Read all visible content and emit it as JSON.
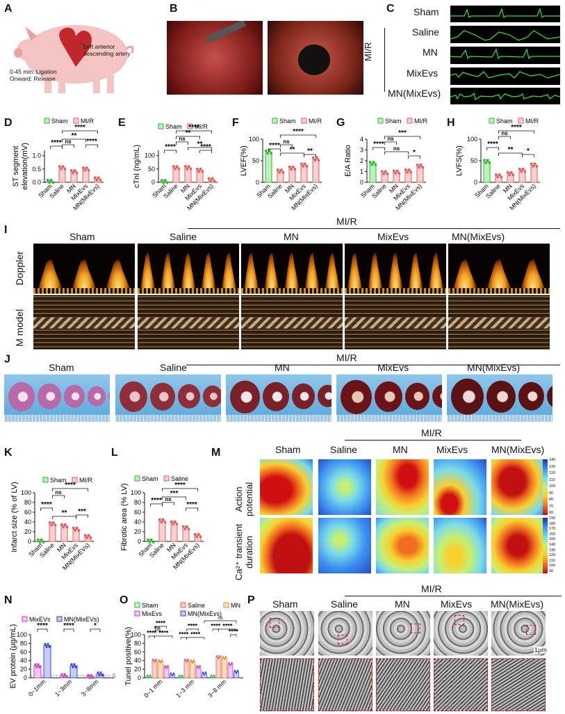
{
  "panel_letters": {
    "a": "A",
    "b": "B",
    "c": "C",
    "d": "D",
    "e": "E",
    "f": "F",
    "g": "G",
    "h": "H",
    "i": "I",
    "j": "J",
    "k": "K",
    "l": "L",
    "m": "M",
    "n": "N",
    "o": "O",
    "p": "P"
  },
  "pig": {
    "artery_line1": "Left anterior",
    "artery_line2": "descending artery",
    "time1": "0-45 min: Ligation",
    "time2": "Onward: Release"
  },
  "ecg": {
    "mir": "MI/R",
    "labels": [
      "Sham",
      "Saline",
      "MN",
      "MixEvs",
      "MN(MixEvs)"
    ]
  },
  "groups": [
    "Sham",
    "Saline",
    "MN",
    "MixEvs",
    "MN(MixEvs)"
  ],
  "groups_k": [
    "Sham",
    "Saline",
    "MN",
    "MixEvs",
    "MN(MixEVs)"
  ],
  "mir": "MI/R",
  "legend": {
    "sham": "Sham",
    "mir": "MI/R",
    "saline": "Saline",
    "mn": "MN",
    "mixevs_n": "MixEVs",
    "mnmixevs_n": "MN(MixEVs)",
    "mixevs_o": "MixEvs",
    "mnmixevs_o": "MN(MixEvs)"
  },
  "sig": {
    "s4": "****",
    "s3": "***",
    "s2": "**",
    "s1": "*",
    "ns": "ns"
  },
  "row_labels": {
    "doppler": "Doppler",
    "mmodel": "M model",
    "ap1": "Action",
    "ap2": "potential",
    "ca1": "Ca²⁺ transient",
    "ca2": "duration"
  },
  "colorbar_ap": [
    "140",
    "130",
    "120",
    "110",
    "100",
    "90",
    "80",
    "70",
    "60"
  ],
  "colorbar_ca": [
    "190",
    "180",
    "170",
    "160",
    "150",
    "140",
    "130",
    "120",
    "110",
    "100",
    "90"
  ],
  "n_axis": {
    "xticks": [
      "0~1mm",
      "1~3mm",
      "3~8mm"
    ],
    "annot": "5"
  },
  "o_axis": {
    "xticks": [
      "0~1 mm",
      "1~3 mm",
      "3~8 mm"
    ]
  },
  "p_scale": "1μm",
  "chart_data": [
    {
      "panel": "D",
      "type": "bar",
      "ylabel": "ST segment elevation(mV)",
      "yticks": [
        "0.0",
        "0.5",
        "1.0"
      ],
      "ylim": [
        0,
        1.2
      ],
      "categories": [
        "Sham",
        "Saline",
        "MN",
        "MixEvs",
        "MN(MixEvs)"
      ],
      "values": [
        0.04,
        0.55,
        0.4,
        0.5,
        0.13
      ]
    },
    {
      "panel": "E",
      "type": "bar",
      "ylabel": "cTnI (ng/mL)",
      "yticks": [
        "0",
        "50",
        "100"
      ],
      "ylim": [
        0,
        120
      ],
      "categories": [
        "Sham",
        "Saline",
        "MN",
        "MixEvs",
        "MN(MixEvs)"
      ],
      "values": [
        3,
        55,
        55,
        45,
        10
      ]
    },
    {
      "panel": "F",
      "type": "bar",
      "ylabel": "LVEF(%)",
      "yticks": [
        "0",
        "50",
        "100"
      ],
      "ylim": [
        0,
        100
      ],
      "categories": [
        "Sham",
        "Saline",
        "MN",
        "MixEvs",
        "MN(MixEvs)"
      ],
      "values": [
        70,
        26,
        33,
        40,
        54
      ]
    },
    {
      "panel": "G",
      "type": "bar",
      "ylabel": "E/A Ratio",
      "yticks": [
        "0",
        "1",
        "2",
        "3",
        "4"
      ],
      "ylim": [
        0,
        4
      ],
      "categories": [
        "Sham",
        "Saline",
        "MN",
        "MixEvs",
        "MN(MixEvs)"
      ],
      "values": [
        1.75,
        0.9,
        0.95,
        1.05,
        1.5
      ]
    },
    {
      "panel": "H",
      "type": "bar",
      "ylabel": "LVFS(%)",
      "yticks": [
        "0",
        "50",
        "100"
      ],
      "ylim": [
        0,
        100
      ],
      "categories": [
        "Sham",
        "Saline",
        "MN",
        "MixEvs",
        "MN(MixEvs)"
      ],
      "values": [
        48,
        15,
        20,
        28,
        40
      ]
    },
    {
      "panel": "K",
      "type": "bar",
      "ylabel": "Infarct size (% of LV)",
      "yticks": [
        "0",
        "20",
        "40",
        "60",
        "80",
        "100"
      ],
      "ylim": [
        0,
        100
      ],
      "categories": [
        "Sham",
        "Saline",
        "MN",
        "MixEvs",
        "MN(MixEVs)"
      ],
      "values": [
        1,
        36,
        32,
        25,
        10
      ]
    },
    {
      "panel": "L",
      "type": "bar",
      "ylabel": "Fibrotic area (% LV)",
      "yticks": [
        "0",
        "20",
        "40",
        "60",
        "80",
        "100"
      ],
      "ylim": [
        0,
        100
      ],
      "categories": [
        "Sham",
        "Saline",
        "MN",
        "MixEvs",
        "MN(MixEvs)"
      ],
      "values": [
        1,
        42,
        38,
        28,
        12
      ]
    },
    {
      "panel": "N",
      "type": "bar",
      "ylabel": "EV protein (μg/mL)",
      "yticks": [
        "0",
        "20",
        "40",
        "60",
        "80",
        "100"
      ],
      "ylim": [
        0,
        100
      ],
      "categories": [
        "0~1mm",
        "1~3mm",
        "3~8mm"
      ],
      "series": [
        {
          "name": "MixEVs",
          "values": [
            28,
            5,
            3
          ]
        },
        {
          "name": "MN(MixEVs)",
          "values": [
            75,
            28,
            9
          ]
        }
      ]
    },
    {
      "panel": "O",
      "type": "bar",
      "ylabel": "Tunel positive(%)",
      "yticks": [
        "0",
        "20",
        "40",
        "60",
        "80",
        "100"
      ],
      "ylim": [
        0,
        100
      ],
      "categories": [
        "0~1 mm",
        "1~3 mm",
        "3~8 mm"
      ],
      "series": [
        {
          "name": "Sham",
          "values": [
            3,
            3,
            3
          ]
        },
        {
          "name": "Saline",
          "values": [
            40,
            40,
            48
          ]
        },
        {
          "name": "MN",
          "values": [
            38,
            38,
            46
          ]
        },
        {
          "name": "MixEvs",
          "values": [
            25,
            25,
            32
          ]
        },
        {
          "name": "MN(MixEvs)",
          "values": [
            8,
            10,
            14
          ]
        }
      ]
    }
  ]
}
